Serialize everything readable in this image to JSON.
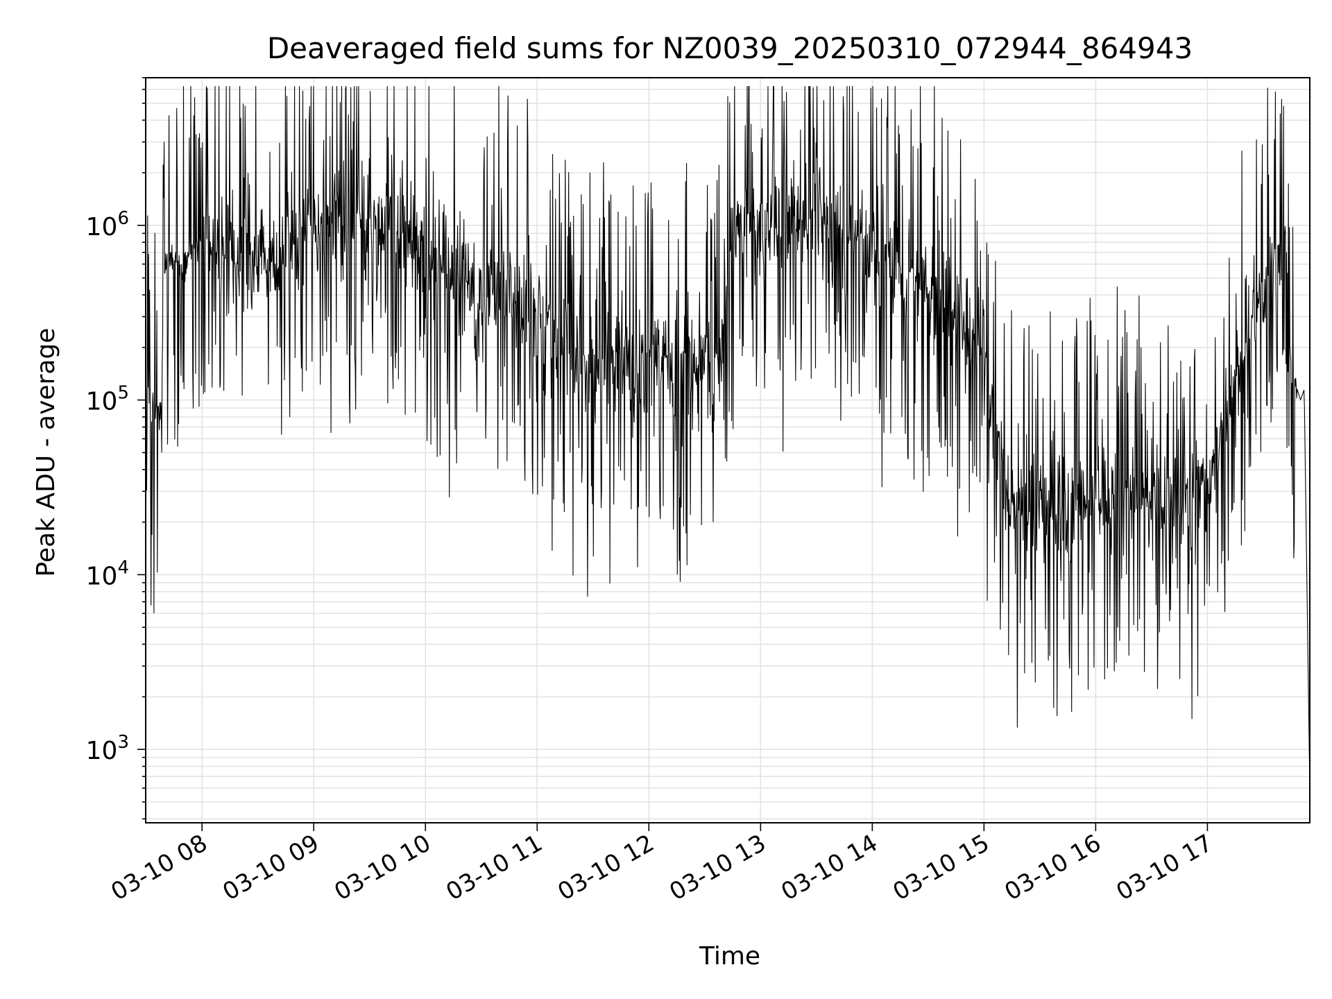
{
  "chart_data": {
    "type": "line",
    "title": "Deaveraged field sums for NZ0039_20250310_072944_864943",
    "xlabel": "Time",
    "ylabel": "Peak ADU - average",
    "yscale": "log",
    "ylim": [
      380,
      7000000
    ],
    "xlim": [
      "03-10 07:29:44",
      "03-10 17:55:00"
    ],
    "grid": "both axes, major and minor",
    "line_color": "#000000",
    "grid_color": "#e3e3e3",
    "x_ticks": [
      {
        "time": "03-10 08:00",
        "label": "03-10 08"
      },
      {
        "time": "03-10 09:00",
        "label": "03-10 09"
      },
      {
        "time": "03-10 10:00",
        "label": "03-10 10"
      },
      {
        "time": "03-10 11:00",
        "label": "03-10 11"
      },
      {
        "time": "03-10 12:00",
        "label": "03-10 12"
      },
      {
        "time": "03-10 13:00",
        "label": "03-10 13"
      },
      {
        "time": "03-10 14:00",
        "label": "03-10 14"
      },
      {
        "time": "03-10 15:00",
        "label": "03-10 15"
      },
      {
        "time": "03-10 16:00",
        "label": "03-10 16"
      },
      {
        "time": "03-10 17:00",
        "label": "03-10 17"
      }
    ],
    "y_ticks": [
      {
        "value": 1000,
        "base": "10",
        "exp": "3"
      },
      {
        "value": 10000,
        "base": "10",
        "exp": "4"
      },
      {
        "value": 100000,
        "base": "10",
        "exp": "5"
      },
      {
        "value": 1000000,
        "base": "10",
        "exp": "6"
      }
    ],
    "series": [
      {
        "x": [
          "07:30",
          "07:35",
          "07:38",
          "07:40",
          "07:45",
          "07:50",
          "08:00",
          "08:05",
          "08:15",
          "08:30",
          "08:45",
          "09:00",
          "09:15",
          "09:30",
          "09:45",
          "10:00",
          "10:15",
          "10:30",
          "10:45",
          "11:00",
          "11:15",
          "11:30",
          "11:45",
          "12:00",
          "12:15",
          "12:30",
          "12:38",
          "12:45",
          "13:00",
          "13:15",
          "13:30",
          "13:45",
          "14:00",
          "14:15",
          "14:30",
          "14:45",
          "15:00",
          "15:05",
          "15:15",
          "15:30",
          "15:45",
          "16:00",
          "16:15",
          "16:30",
          "16:45",
          "17:00",
          "17:10",
          "17:20",
          "17:30",
          "17:40",
          "17:42",
          "17:45",
          "17:50",
          "17:52",
          "17:55"
        ],
        "y": [
          110000,
          80000,
          90000,
          600000,
          650000,
          550000,
          900000,
          700000,
          650000,
          650000,
          800000,
          1100000,
          1000000,
          1100000,
          1000000,
          600000,
          550000,
          400000,
          450000,
          300000,
          200000,
          160000,
          170000,
          170000,
          170000,
          160000,
          160000,
          900000,
          900000,
          1150000,
          1250000,
          1100000,
          800000,
          600000,
          450000,
          350000,
          180000,
          60000,
          28000,
          23000,
          24000,
          25000,
          26000,
          27000,
          28000,
          32000,
          70000,
          250000,
          400000,
          900000,
          1000000,
          150000,
          100000,
          115000,
          600
        ]
      }
    ]
  }
}
